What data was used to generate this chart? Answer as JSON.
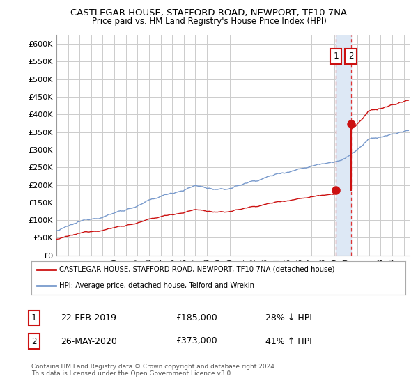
{
  "title": "CASTLEGAR HOUSE, STAFFORD ROAD, NEWPORT, TF10 7NA",
  "subtitle": "Price paid vs. HM Land Registry's House Price Index (HPI)",
  "ylabel_ticks": [
    "£0",
    "£50K",
    "£100K",
    "£150K",
    "£200K",
    "£250K",
    "£300K",
    "£350K",
    "£400K",
    "£450K",
    "£500K",
    "£550K",
    "£600K"
  ],
  "ytick_values": [
    0,
    50000,
    100000,
    150000,
    200000,
    250000,
    300000,
    350000,
    400000,
    450000,
    500000,
    550000,
    600000
  ],
  "ylim": [
    0,
    625000
  ],
  "xlim_start": 1995.0,
  "xlim_end": 2025.5,
  "hpi_color": "#7799cc",
  "sale_color": "#cc1111",
  "vline_color": "#dd3333",
  "vshade_color": "#dde8f5",
  "sale1_x": 2019.13,
  "sale1_y": 185000,
  "sale2_x": 2020.42,
  "sale2_y": 373000,
  "legend_label1": "CASTLEGAR HOUSE, STAFFORD ROAD, NEWPORT, TF10 7NA (detached house)",
  "legend_label2": "HPI: Average price, detached house, Telford and Wrekin",
  "table_row1": [
    "1",
    "22-FEB-2019",
    "£185,000",
    "28% ↓ HPI"
  ],
  "table_row2": [
    "2",
    "26-MAY-2020",
    "£373,000",
    "41% ↑ HPI"
  ],
  "footer": "Contains HM Land Registry data © Crown copyright and database right 2024.\nThis data is licensed under the Open Government Licence v3.0.",
  "background_color": "#ffffff",
  "grid_color": "#cccccc"
}
